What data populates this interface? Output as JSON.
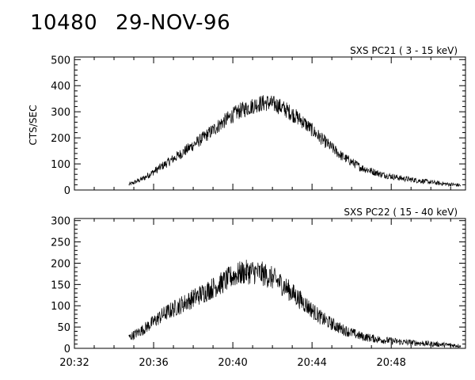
{
  "header": {
    "number": "10480",
    "date": "29-NOV-96"
  },
  "ylabel": "CTS/SEC",
  "chart_data": [
    {
      "type": "line",
      "title": "SXS PC21  (  3 - 15 keV)",
      "xlabel": "",
      "ylabel": "CTS/SEC",
      "x_ticks": [
        "20:32",
        "20:36",
        "20:40",
        "20:44",
        "20:48"
      ],
      "xlim": [
        "20:32",
        "20:51:45"
      ],
      "ylim": [
        0,
        510
      ],
      "y_ticks": [
        0,
        100,
        200,
        300,
        400,
        500
      ],
      "series": [
        {
          "x": [
            "20:34:45",
            "20:35:30",
            "20:36:30",
            "20:37:30",
            "20:38:30",
            "20:39:30",
            "20:40:15",
            "20:40:45",
            "20:41:15",
            "20:41:45",
            "20:42:15",
            "20:42:45",
            "20:43:30",
            "20:44:30",
            "20:45:30",
            "20:46:30",
            "20:47:30",
            "20:48:30",
            "20:49:30",
            "20:50:30",
            "20:51:30"
          ],
          "values": [
            20,
            45,
            95,
            145,
            200,
            260,
            300,
            315,
            330,
            335,
            325,
            305,
            265,
            195,
            130,
            85,
            60,
            45,
            35,
            25,
            18
          ]
        }
      ]
    },
    {
      "type": "line",
      "title": "SXS PC22  ( 15 - 40 keV)",
      "xlabel": "",
      "ylabel": "",
      "x_ticks": [
        "20:32",
        "20:36",
        "20:40",
        "20:44",
        "20:48"
      ],
      "xlim": [
        "20:32",
        "20:51:45"
      ],
      "ylim": [
        0,
        305
      ],
      "y_ticks": [
        0,
        50,
        100,
        150,
        200,
        250,
        300
      ],
      "series": [
        {
          "x": [
            "20:34:45",
            "20:35:30",
            "20:36:30",
            "20:37:30",
            "20:38:30",
            "20:39:30",
            "20:40:00",
            "20:40:30",
            "20:41:00",
            "20:41:30",
            "20:42:00",
            "20:42:30",
            "20:43:30",
            "20:44:30",
            "20:45:30",
            "20:46:30",
            "20:47:30",
            "20:48:30",
            "20:49:30",
            "20:50:30",
            "20:51:30"
          ],
          "values": [
            25,
            45,
            80,
            105,
            130,
            155,
            170,
            178,
            180,
            175,
            165,
            150,
            110,
            70,
            45,
            28,
            20,
            15,
            12,
            9,
            6
          ]
        }
      ]
    }
  ]
}
